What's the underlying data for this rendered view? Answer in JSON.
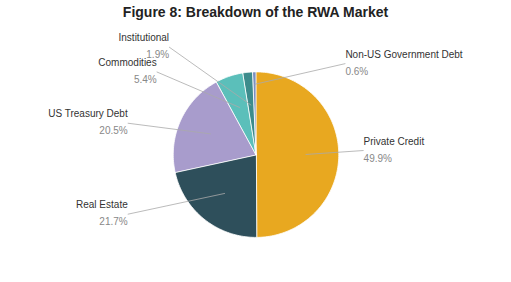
{
  "chart_data": {
    "type": "pie",
    "title": "Figure 8: Breakdown of the RWA Market",
    "categories": [
      "Private Credit",
      "Real Estate",
      "US Treasury Debt",
      "Commodities",
      "Institutional",
      "Non-US Government Debt"
    ],
    "values": [
      49.9,
      21.7,
      20.5,
      5.4,
      1.9,
      0.6
    ],
    "value_labels": [
      "49.9%",
      "21.7%",
      "20.5%",
      "5.4%",
      "1.9%",
      "0.6%"
    ],
    "colors": [
      "#E8A820",
      "#2E4F5B",
      "#A89CCC",
      "#5BBFBA",
      "#3D8C8C",
      "#7B8FBF"
    ],
    "data_labels": true
  }
}
